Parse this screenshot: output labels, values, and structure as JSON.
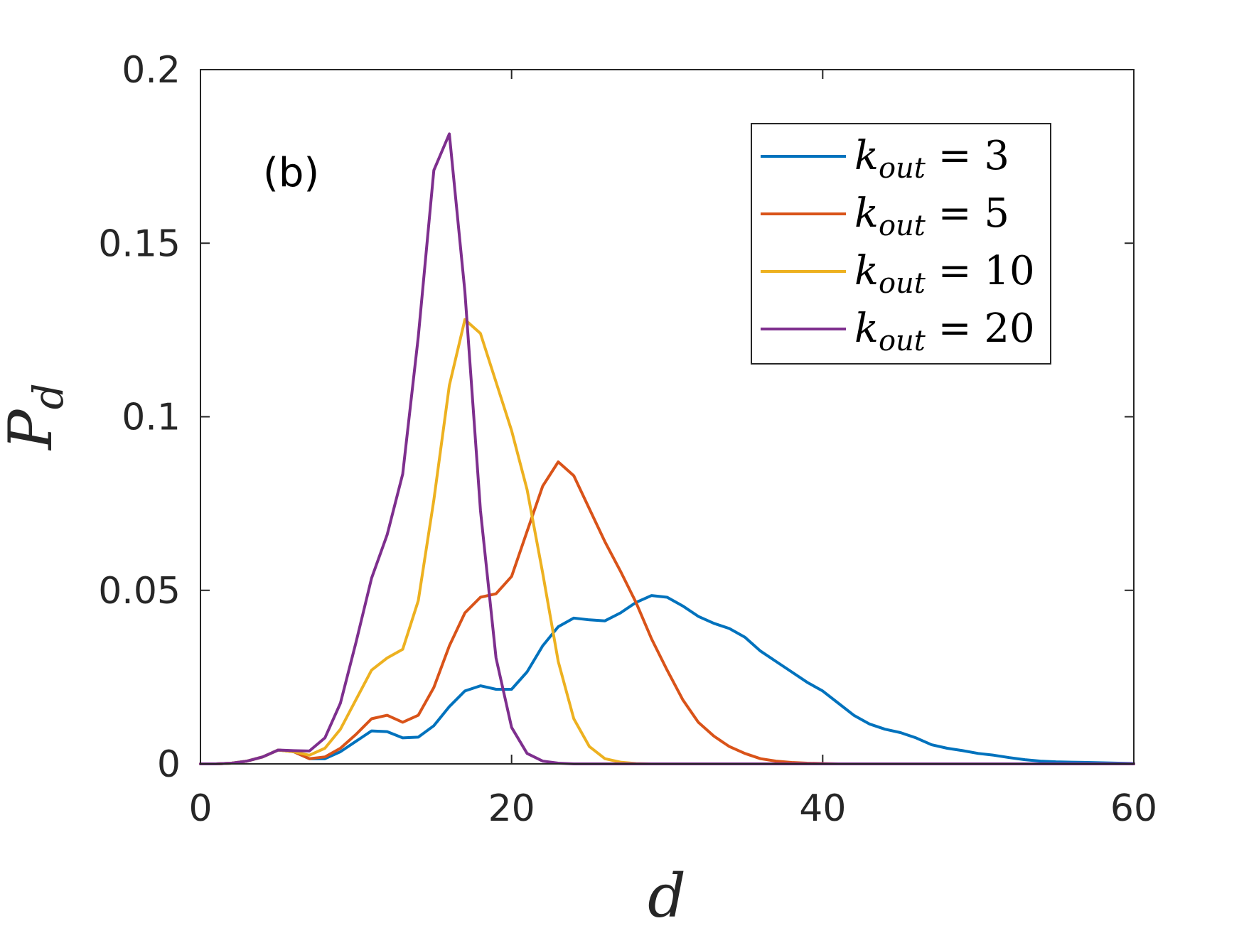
{
  "chart_data": {
    "type": "line",
    "panel_label": "(b)",
    "xlabel": "d",
    "ylabel_main": "P",
    "ylabel_sub": "d",
    "xlim": [
      0,
      60
    ],
    "ylim": [
      0,
      0.2
    ],
    "xticks": [
      0,
      20,
      40,
      60
    ],
    "yticks": [
      0,
      0.05,
      0.1,
      0.15,
      0.2
    ],
    "xtick_labels": [
      "0",
      "20",
      "40",
      "60"
    ],
    "ytick_labels": [
      "0",
      "0.05",
      "0.1",
      "0.15",
      "0.2"
    ],
    "legend_position": "top-right",
    "x": [
      0,
      1,
      2,
      3,
      4,
      5,
      6,
      7,
      8,
      9,
      10,
      11,
      12,
      13,
      14,
      15,
      16,
      17,
      18,
      19,
      20,
      21,
      22,
      23,
      24,
      25,
      26,
      27,
      28,
      29,
      30,
      31,
      32,
      33,
      34,
      35,
      36,
      37,
      38,
      39,
      40,
      41,
      42,
      43,
      44,
      45,
      46,
      47,
      48,
      49,
      50,
      51,
      52,
      53,
      54,
      55,
      56,
      57,
      58,
      59,
      60
    ],
    "series": [
      {
        "name": "k_out = 3",
        "legend_var": "k",
        "legend_sub": "out",
        "legend_rest": " = 3",
        "color": "#0072BD",
        "values": [
          0,
          0,
          0.0002,
          0.0008,
          0.002,
          0.004,
          0.0035,
          0.0015,
          0.0015,
          0.0035,
          0.0065,
          0.0095,
          0.0093,
          0.0075,
          0.0077,
          0.011,
          0.0165,
          0.021,
          0.0225,
          0.0215,
          0.0215,
          0.0265,
          0.034,
          0.0395,
          0.042,
          0.0415,
          0.0412,
          0.0435,
          0.0465,
          0.0485,
          0.048,
          0.0455,
          0.0425,
          0.0405,
          0.039,
          0.0365,
          0.0325,
          0.0295,
          0.0265,
          0.0235,
          0.021,
          0.0175,
          0.014,
          0.0115,
          0.01,
          0.009,
          0.0075,
          0.0055,
          0.0045,
          0.0038,
          0.003,
          0.0025,
          0.0018,
          0.0012,
          0.0008,
          0.0006,
          0.0005,
          0.0004,
          0.0003,
          0.0002,
          0.0001
        ]
      },
      {
        "name": "k_out = 5",
        "legend_var": "k",
        "legend_sub": "out",
        "legend_rest": " = 5",
        "color": "#D95319",
        "values": [
          0,
          0,
          0.0002,
          0.0008,
          0.002,
          0.004,
          0.0035,
          0.0015,
          0.002,
          0.0045,
          0.0085,
          0.013,
          0.014,
          0.012,
          0.014,
          0.022,
          0.034,
          0.0435,
          0.048,
          0.049,
          0.054,
          0.067,
          0.08,
          0.087,
          0.083,
          0.0735,
          0.064,
          0.0555,
          0.0465,
          0.036,
          0.027,
          0.0185,
          0.012,
          0.008,
          0.005,
          0.003,
          0.0015,
          0.0008,
          0.0004,
          0.0002,
          0.0001,
          0,
          0,
          0,
          0,
          0,
          0,
          0,
          0,
          0,
          0,
          0,
          0,
          0,
          0,
          0,
          0,
          0,
          0,
          0,
          0
        ]
      },
      {
        "name": "k_out = 10",
        "legend_var": "k",
        "legend_sub": "out",
        "legend_rest": " = 10",
        "color": "#EDB120",
        "values": [
          0,
          0,
          0.0002,
          0.0008,
          0.002,
          0.004,
          0.0035,
          0.0025,
          0.0045,
          0.01,
          0.0185,
          0.027,
          0.0305,
          0.033,
          0.047,
          0.076,
          0.109,
          0.128,
          0.124,
          0.11,
          0.096,
          0.079,
          0.055,
          0.0295,
          0.013,
          0.005,
          0.0015,
          0.0005,
          0.0001,
          0,
          0,
          0,
          0,
          0,
          0,
          0,
          0,
          0,
          0,
          0,
          0,
          0,
          0,
          0,
          0,
          0,
          0,
          0,
          0,
          0,
          0,
          0,
          0,
          0,
          0,
          0,
          0,
          0,
          0,
          0,
          0
        ]
      },
      {
        "name": "k_out = 20",
        "legend_var": "k",
        "legend_sub": "out",
        "legend_rest": " = 20",
        "color": "#7E2F8E",
        "values": [
          0,
          0,
          0.0002,
          0.0008,
          0.002,
          0.004,
          0.0038,
          0.0037,
          0.0075,
          0.0175,
          0.035,
          0.0535,
          0.066,
          0.0835,
          0.123,
          0.171,
          0.1815,
          0.136,
          0.073,
          0.0305,
          0.0105,
          0.003,
          0.0008,
          0.0002,
          0,
          0,
          0,
          0,
          0,
          0,
          0,
          0,
          0,
          0,
          0,
          0,
          0,
          0,
          0,
          0,
          0,
          0,
          0,
          0,
          0,
          0,
          0,
          0,
          0,
          0,
          0,
          0,
          0,
          0,
          0,
          0,
          0,
          0,
          0,
          0,
          0
        ]
      }
    ]
  }
}
